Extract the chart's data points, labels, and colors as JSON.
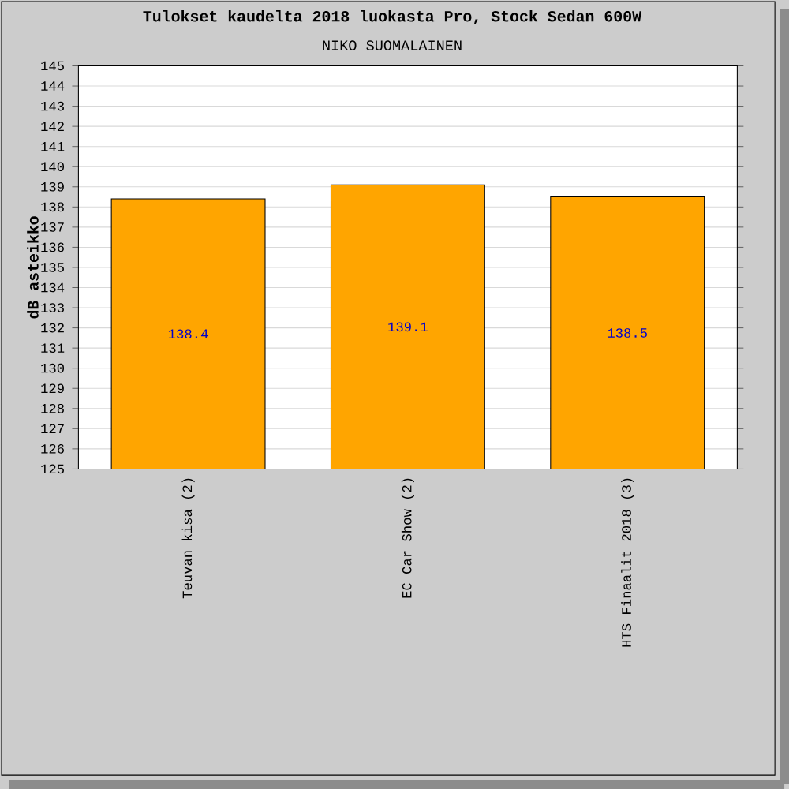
{
  "chart_data": {
    "type": "bar",
    "title": "Tulokset kaudelta 2018 luokasta Pro, Stock Sedan 600W",
    "subtitle": "NIKO SUOMALAINEN",
    "ylabel": "dB asteikko",
    "categories": [
      "Teuvan kisa (2)",
      "EC Car Show (2)",
      "HTS Finaalit 2018 (3)"
    ],
    "values": [
      138.4,
      139.1,
      138.5
    ],
    "color": "#ffa500",
    "ylim": [
      125,
      145
    ],
    "yticks": [
      125,
      126,
      127,
      128,
      129,
      130,
      131,
      132,
      133,
      134,
      135,
      136,
      137,
      138,
      139,
      140,
      141,
      142,
      143,
      144,
      145
    ],
    "grid": "y",
    "data_labels": true
  }
}
